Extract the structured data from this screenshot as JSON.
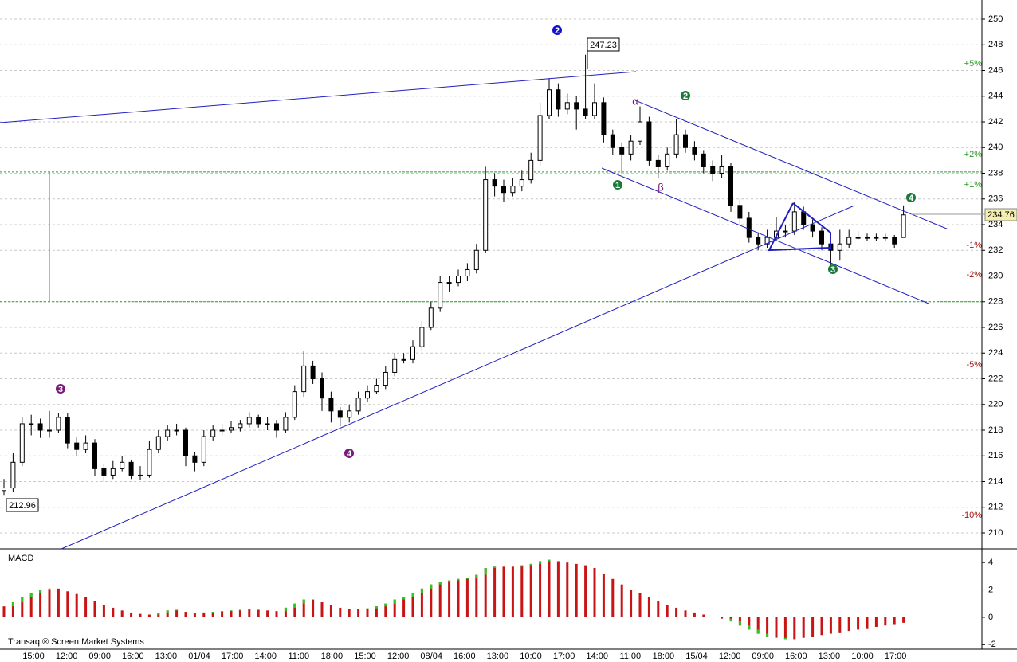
{
  "chart_data": [
    {
      "type": "candlestick",
      "time_labels": [
        "15:00",
        "12:00",
        "09:00",
        "16:00",
        "13:00",
        "01/04",
        "17:00",
        "14:00",
        "11:00",
        "18:00",
        "15:00",
        "12:00",
        "08/04",
        "16:00",
        "13:00",
        "10:00",
        "17:00",
        "14:00",
        "11:00",
        "18:00",
        "15/04",
        "12:00",
        "09:00",
        "16:00",
        "13:00",
        "10:00",
        "17:00"
      ],
      "candles": [
        [
          213.3,
          214.2,
          212.96,
          213.5
        ],
        [
          213.5,
          216.2,
          213.2,
          215.5
        ],
        [
          215.5,
          219,
          215.2,
          218.5
        ],
        [
          218.5,
          219.2,
          217.6,
          218.5
        ],
        [
          218.5,
          218.9,
          217.4,
          218
        ],
        [
          218,
          219.5,
          217.4,
          218
        ],
        [
          218,
          219.3,
          217.8,
          219
        ],
        [
          219,
          219.3,
          216.6,
          217
        ],
        [
          217,
          217.5,
          216,
          216.5
        ],
        [
          216.5,
          217.6,
          216.2,
          217
        ],
        [
          217,
          217.3,
          214.4,
          215
        ],
        [
          215,
          215.4,
          214,
          214.5
        ],
        [
          214.5,
          215.6,
          214.2,
          215
        ],
        [
          215,
          216,
          214.8,
          215.5
        ],
        [
          215.5,
          215.7,
          214.2,
          214.5
        ],
        [
          214.5,
          215.2,
          214.1,
          214.5
        ],
        [
          214.5,
          217.2,
          214.3,
          216.5
        ],
        [
          216.5,
          218,
          216.2,
          217.5
        ],
        [
          217.5,
          218.4,
          217.2,
          218
        ],
        [
          218,
          218.5,
          217.6,
          218
        ],
        [
          218,
          218.2,
          215.2,
          216
        ],
        [
          216,
          216.3,
          214.8,
          215.5
        ],
        [
          215.5,
          218,
          215.2,
          217.5
        ],
        [
          217.5,
          218.4,
          217.2,
          218
        ],
        [
          218,
          218.5,
          217.6,
          218
        ],
        [
          218,
          218.7,
          217.8,
          218.2
        ],
        [
          218.2,
          218.8,
          217.9,
          218.5
        ],
        [
          218.5,
          219.4,
          218.2,
          219
        ],
        [
          219,
          219.2,
          218.2,
          218.5
        ],
        [
          218.5,
          219,
          218,
          218.5
        ],
        [
          218.5,
          218.8,
          217.4,
          218
        ],
        [
          218,
          219.4,
          217.8,
          219
        ],
        [
          219,
          221.5,
          218.8,
          221
        ],
        [
          221,
          224.2,
          220.6,
          223
        ],
        [
          223,
          223.4,
          221.6,
          222
        ],
        [
          222,
          222.5,
          219.5,
          220.5
        ],
        [
          220.5,
          221,
          218.6,
          219.5
        ],
        [
          219.5,
          219.8,
          218.3,
          219
        ],
        [
          219,
          220,
          218.6,
          219.5
        ],
        [
          219.5,
          221,
          219.2,
          220.5
        ],
        [
          220.5,
          221.5,
          220.2,
          221
        ],
        [
          221,
          222,
          220.8,
          221.5
        ],
        [
          221.5,
          223,
          221.2,
          222.5
        ],
        [
          222.5,
          224,
          222.2,
          223.5
        ],
        [
          223.5,
          224,
          223.2,
          223.5
        ],
        [
          223.5,
          225,
          223.2,
          224.5
        ],
        [
          224.5,
          226.5,
          224.2,
          226
        ],
        [
          226,
          228,
          225.8,
          227.5
        ],
        [
          227.5,
          230,
          227.2,
          229.5
        ],
        [
          229.5,
          230,
          228.8,
          229.5
        ],
        [
          229.5,
          230.5,
          229.2,
          230
        ],
        [
          230,
          231,
          229.6,
          230.5
        ],
        [
          230.5,
          232.5,
          230.2,
          232
        ],
        [
          232,
          238.5,
          231.8,
          237.5
        ],
        [
          237.5,
          238,
          236.2,
          237
        ],
        [
          237,
          237.5,
          235.8,
          236.5
        ],
        [
          236.5,
          237.6,
          236.2,
          237
        ],
        [
          237,
          238.2,
          236.6,
          237.5
        ],
        [
          237.5,
          239.6,
          237.2,
          239
        ],
        [
          239,
          243.5,
          238.6,
          242.5
        ],
        [
          242.5,
          245.4,
          242.2,
          244.5
        ],
        [
          244.5,
          245,
          242.4,
          243
        ],
        [
          243,
          244.2,
          242.6,
          243.5
        ],
        [
          243.5,
          244,
          241.4,
          243
        ],
        [
          243,
          247.23,
          242.2,
          242.5
        ],
        [
          242.5,
          245,
          242.2,
          243.5
        ],
        [
          243.5,
          243.9,
          240.4,
          241
        ],
        [
          241,
          241.4,
          239.4,
          240
        ],
        [
          240,
          240.4,
          238,
          239.5
        ],
        [
          239.5,
          241,
          239,
          240.5
        ],
        [
          240.5,
          243.2,
          240.2,
          242
        ],
        [
          242,
          242.4,
          238.6,
          239
        ],
        [
          239,
          239.4,
          237.6,
          238.5
        ],
        [
          238.5,
          240,
          238.2,
          239.5
        ],
        [
          239.5,
          242.2,
          239.2,
          241
        ],
        [
          241,
          241.4,
          239.6,
          240
        ],
        [
          240,
          240.5,
          239,
          239.5
        ],
        [
          239.5,
          239.8,
          238,
          238.5
        ],
        [
          238.5,
          239,
          237.4,
          238
        ],
        [
          238,
          239.4,
          237.6,
          238.5
        ],
        [
          238.5,
          238.8,
          235,
          235.5
        ],
        [
          235.5,
          236,
          234,
          234.5
        ],
        [
          234.5,
          235,
          232.6,
          233
        ],
        [
          233,
          233.4,
          232,
          232.5
        ],
        [
          232.5,
          233.6,
          232.2,
          233
        ],
        [
          233,
          234.6,
          232.8,
          233.5
        ],
        [
          233.5,
          234,
          233,
          233.5
        ],
        [
          233.5,
          235.8,
          233.2,
          235
        ],
        [
          235,
          235.4,
          233.6,
          234
        ],
        [
          234,
          234.4,
          233,
          233.5
        ],
        [
          233.5,
          233.8,
          232,
          232.5
        ],
        [
          232.5,
          232.8,
          230.8,
          232
        ],
        [
          232,
          233.6,
          231.2,
          232.5
        ],
        [
          232.5,
          233.6,
          232.2,
          233
        ],
        [
          233,
          233.5,
          232.8,
          233
        ],
        [
          233,
          233.3,
          232.7,
          233
        ],
        [
          233,
          233.3,
          232.7,
          233
        ],
        [
          233,
          233.3,
          232.7,
          233
        ],
        [
          233,
          233.2,
          232.2,
          232.5
        ],
        [
          233,
          235.5,
          233,
          234.76
        ]
      ],
      "ylim": [
        208.76,
        251.49
      ],
      "yticks": [
        210,
        212,
        214,
        216,
        218,
        220,
        222,
        224,
        226,
        228,
        230,
        232,
        234,
        236,
        238,
        240,
        242,
        244,
        246,
        248,
        250
      ],
      "grid": true,
      "levels": [
        238.1,
        228
      ],
      "level_color": "#2e9e2e",
      "up_color": "#ffffff",
      "down_color": "#000000",
      "percent_labels": [
        "+5%",
        "+2%",
        "+1%",
        "-1%",
        "-2%",
        "-5%",
        "-10%"
      ],
      "wave_labels": [
        "2",
        "2",
        "1",
        "3",
        "4",
        "3",
        "4",
        "α",
        "β"
      ],
      "footer": "Transaq ® Screen Market Systems"
    },
    {
      "type": "bar",
      "title": "MACD",
      "values": [
        0.8,
        1.1,
        1.5,
        1.8,
        2.0,
        2.1,
        2.1,
        1.9,
        1.7,
        1.5,
        1.2,
        0.9,
        0.7,
        0.5,
        0.35,
        0.25,
        0.2,
        0.3,
        0.5,
        0.55,
        0.4,
        0.3,
        0.35,
        0.4,
        0.45,
        0.5,
        0.55,
        0.6,
        0.55,
        0.5,
        0.45,
        0.7,
        1.0,
        1.3,
        1.3,
        1.1,
        0.9,
        0.7,
        0.6,
        0.6,
        0.65,
        0.8,
        1.0,
        1.3,
        1.5,
        1.8,
        2.1,
        2.4,
        2.6,
        2.7,
        2.8,
        2.9,
        3.1,
        3.6,
        3.7,
        3.7,
        3.7,
        3.8,
        3.9,
        4.1,
        4.2,
        4.1,
        4.0,
        3.9,
        3.8,
        3.6,
        3.2,
        2.8,
        2.4,
        2.0,
        1.8,
        1.5,
        1.2,
        0.9,
        0.7,
        0.5,
        0.35,
        0.2,
        0.05,
        -0.1,
        -0.3,
        -0.6,
        -0.9,
        -1.2,
        -1.4,
        -1.5,
        -1.6,
        -1.6,
        -1.5,
        -1.4,
        -1.3,
        -1.2,
        -1.1,
        -1.0,
        -0.9,
        -0.8,
        -0.7,
        -0.6,
        -0.5,
        -0.4
      ],
      "ylim": [
        -2.33,
        4.94
      ],
      "yticks": [
        -2,
        0,
        2,
        4
      ],
      "color": "#c81414",
      "change_color": "#22cc22"
    }
  ]
}
